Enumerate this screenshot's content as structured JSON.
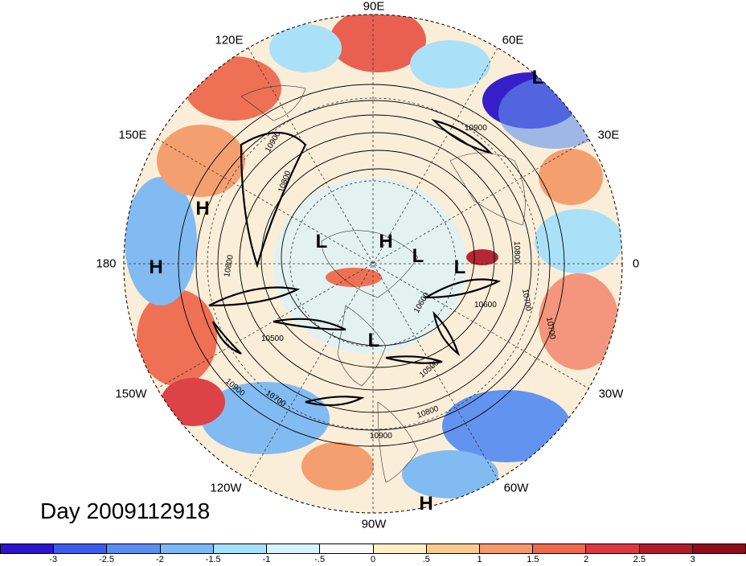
{
  "map": {
    "title": "Day 2009112918",
    "longitude_labels": {
      "lon_90e": "90E",
      "lon_60e": "60E",
      "lon_30e": "30E",
      "lon_0": "0",
      "lon_30w": "30W",
      "lon_60w": "60W",
      "lon_90w": "90W",
      "lon_120w": "120W",
      "lon_150w": "150W",
      "lon_180": "180",
      "lon_150e": "150E",
      "lon_120e": "120E"
    },
    "pressure_centers": [
      {
        "label": "L"
      },
      {
        "label": "H"
      },
      {
        "label": "H"
      },
      {
        "label": "L"
      },
      {
        "label": "H"
      },
      {
        "label": "L"
      },
      {
        "label": "L"
      },
      {
        "label": "L"
      },
      {
        "label": "H"
      }
    ],
    "contour_labels": [
      "10900",
      "10800",
      "10500",
      "10600",
      "10700",
      "10800",
      "10900",
      "10900",
      "10700",
      "10500",
      "10800",
      "10900",
      "10800",
      "10700",
      "10600"
    ]
  },
  "colorbar": {
    "labels": [
      "-3",
      "-2.5",
      "-2",
      "-1.5",
      "-1",
      "-.5",
      "0",
      ".5",
      "1",
      "1.5",
      "2",
      "2.5",
      "3"
    ],
    "colors": [
      "#2c14c8",
      "#3c5cec",
      "#5a8ef0",
      "#7cb8f4",
      "#a6e0fa",
      "#d6f4fc",
      "#fafafa",
      "#fdf0c4",
      "#f8cc8e",
      "#f49a6a",
      "#ee6a4e",
      "#dc3840",
      "#b01c2c",
      "#8c0c1c"
    ]
  }
}
